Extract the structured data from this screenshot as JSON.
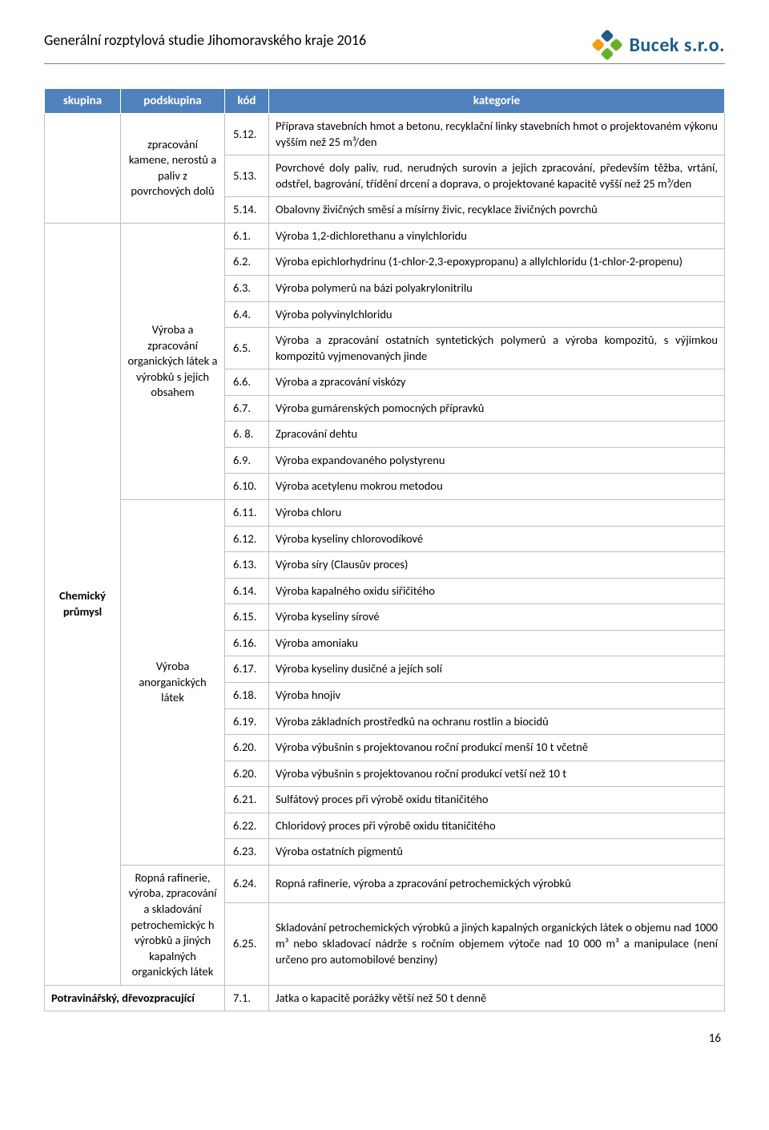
{
  "doc_title": "Generální rozptylová studie Jihomoravského kraje 2016",
  "logo_text": "Bucek s.r.o.",
  "page_number": "16",
  "colors": {
    "header_bg": "#4f81bd",
    "header_fg": "#ffffff",
    "border": "#bfbfbf",
    "rule": "#7f7f7f",
    "logo_blue": "#1f5a8a",
    "logo_green": "#6ab023",
    "logo_orange": "#f39c12"
  },
  "columns": {
    "skupina": "skupina",
    "podskupina": "podskupina",
    "kod": "kód",
    "kategorie": "kategorie"
  },
  "groups": [
    {
      "skupina": "",
      "podskupina": "zpracování kamene, nerostů a paliv z povrchových dolů",
      "rows": [
        {
          "kod": "5.12.",
          "kategorie": "Příprava stavebních hmot a betonu, recyklační linky stavebních hmot o projektovaném výkonu vyšším než 25 m³/den"
        },
        {
          "kod": "5.13.",
          "kategorie": "Povrchové doly paliv, rud, nerudných surovin a jejich zpracování, především těžba, vrtání, odstřel, bagrování, třídění drcení a doprava, o projektované kapacitě vyšší než 25 m³/den"
        },
        {
          "kod": "5.14.",
          "kategorie": "Obalovny živičných směsí a mísírny živic, recyklace živičných povrchů"
        }
      ]
    },
    {
      "skupina": "Chemický průmysl",
      "subgroups": [
        {
          "podskupina": "Výroba a zpracování organických látek a výrobků s jejich obsahem",
          "rows": [
            {
              "kod": "6.1.",
              "kategorie": "Výroba 1,2-dichlorethanu a vinylchloridu"
            },
            {
              "kod": "6.2.",
              "kategorie": "Výroba epichlorhydrinu (1-chlor-2,3-epoxypropanu) a allylchloridu (1-chlor-2-propenu)"
            },
            {
              "kod": "6.3.",
              "kategorie": "Výroba polymerů na bázi polyakrylonitrilu"
            },
            {
              "kod": "6.4.",
              "kategorie": "Výroba polyvinylchloridu"
            },
            {
              "kod": "6.5.",
              "kategorie": "Výroba a zpracování ostatních syntetických polymerů a výroba kompozitů, s výjimkou kompozitů vyjmenovaných jinde"
            },
            {
              "kod": "6.6.",
              "kategorie": "Výroba a zpracování viskózy"
            },
            {
              "kod": "6.7.",
              "kategorie": "Výroba gumárenských pomocných přípravků"
            },
            {
              "kod": "6. 8.",
              "kategorie": "Zpracování dehtu"
            },
            {
              "kod": "6.9.",
              "kategorie": "Výroba expandovaného polystyrenu"
            },
            {
              "kod": "6.10.",
              "kategorie": "Výroba acetylenu mokrou metodou"
            }
          ]
        },
        {
          "podskupina": "Výroba anorganických látek",
          "rows": [
            {
              "kod": "6.11.",
              "kategorie": "Výroba chloru"
            },
            {
              "kod": "6.12.",
              "kategorie": "Výroba kyseliny chlorovodíkové"
            },
            {
              "kod": "6.13.",
              "kategorie": "Výroba síry (Clausův proces)"
            },
            {
              "kod": "6.14.",
              "kategorie": "Výroba kapalného oxidu siřičitého"
            },
            {
              "kod": "6.15.",
              "kategorie": "Výroba kyseliny sírové"
            },
            {
              "kod": "6.16.",
              "kategorie": "Výroba amoniaku"
            },
            {
              "kod": "6.17.",
              "kategorie": "Výroba kyseliny dusičné a jejích solí"
            },
            {
              "kod": "6.18.",
              "kategorie": "Výroba hnojiv"
            },
            {
              "kod": "6.19.",
              "kategorie": "Výroba základních prostředků na ochranu rostlin a biocidů"
            },
            {
              "kod": "6.20.",
              "kategorie": "Výroba výbušnin s projektovanou roční produkcí menší 10 t včetně"
            },
            {
              "kod": "6.20.",
              "kategorie": "Výroba výbušnin s projektovanou roční produkcí vetší než 10 t"
            },
            {
              "kod": "6.21.",
              "kategorie": "Sulfátový proces při výrobě oxidu titaničitého"
            },
            {
              "kod": "6.22.",
              "kategorie": "Chloridový proces při výrobě oxidu titaničitého"
            },
            {
              "kod": "6.23.",
              "kategorie": "Výroba ostatních pigmentů"
            }
          ]
        },
        {
          "podskupina": "Ropná rafinerie, výroba, zpracování a skladování petrochemickýc h výrobků a jiných kapalných organických látek",
          "rows": [
            {
              "kod": "6.24.",
              "kategorie": "Ropná rafinerie, výroba a zpracování petrochemických výrobků"
            },
            {
              "kod": "6.25.",
              "kategorie": "Skladování petrochemických výrobků a jiných kapalných organických látek o objemu nad 1000 m³ nebo skladovací nádrže s ročním objemem výtoče nad 10 000 m³ a manipulace (není určeno pro automobilové benziny)"
            }
          ]
        }
      ]
    },
    {
      "skupina_podskupina_merged": "Potravinářský, dřevozpracující",
      "rows": [
        {
          "kod": "7.1.",
          "kategorie": "Jatka o kapacitě porážky větší než 50 t denně"
        }
      ]
    }
  ]
}
